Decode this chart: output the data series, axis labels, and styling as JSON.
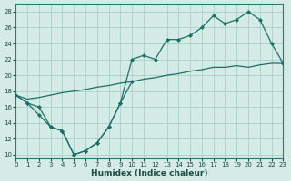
{
  "xlabel": "Humidex (Indice chaleur)",
  "xlim": [
    0,
    23
  ],
  "ylim": [
    9.5,
    29
  ],
  "xticks": [
    0,
    1,
    2,
    3,
    4,
    5,
    6,
    7,
    8,
    9,
    10,
    11,
    12,
    13,
    14,
    15,
    16,
    17,
    18,
    19,
    20,
    21,
    22,
    23
  ],
  "yticks": [
    10,
    12,
    14,
    16,
    18,
    20,
    22,
    24,
    26,
    28
  ],
  "bg_color": "#d4ebe6",
  "line_color": "#1a7068",
  "grid_color": "#aad0c8",
  "curve1_x": [
    0,
    1,
    2,
    3,
    4,
    5,
    6,
    7,
    8,
    9,
    10,
    11,
    12,
    13,
    14,
    15,
    16,
    17,
    18,
    19,
    20,
    21,
    22,
    23
  ],
  "curve1_y": [
    17.5,
    16.5,
    16.0,
    13.5,
    13.0,
    10.0,
    10.5,
    11.5,
    13.5,
    16.5,
    22.0,
    22.5,
    22.0,
    24.5,
    24.5,
    25.0,
    26.0,
    27.5,
    26.5,
    27.0,
    28.0,
    27.0,
    24.0,
    21.5
  ],
  "curve2_x": [
    0,
    1,
    2,
    3,
    4,
    5,
    6,
    7,
    8,
    9,
    10,
    11,
    12,
    13,
    14,
    15,
    16,
    17,
    18,
    19,
    20,
    21,
    22,
    23
  ],
  "curve2_y": [
    17.5,
    17.0,
    17.2,
    17.5,
    17.8,
    18.0,
    18.2,
    18.5,
    18.7,
    19.0,
    19.2,
    19.5,
    19.7,
    20.0,
    20.2,
    20.5,
    20.7,
    21.0,
    21.0,
    21.2,
    21.0,
    21.3,
    21.5,
    21.5
  ],
  "curve3_x": [
    0,
    1,
    2,
    3,
    4,
    5,
    6,
    7,
    8,
    9,
    10
  ],
  "curve3_y": [
    17.5,
    16.5,
    15.0,
    13.5,
    13.0,
    10.0,
    10.5,
    11.5,
    13.5,
    16.5,
    19.2
  ]
}
